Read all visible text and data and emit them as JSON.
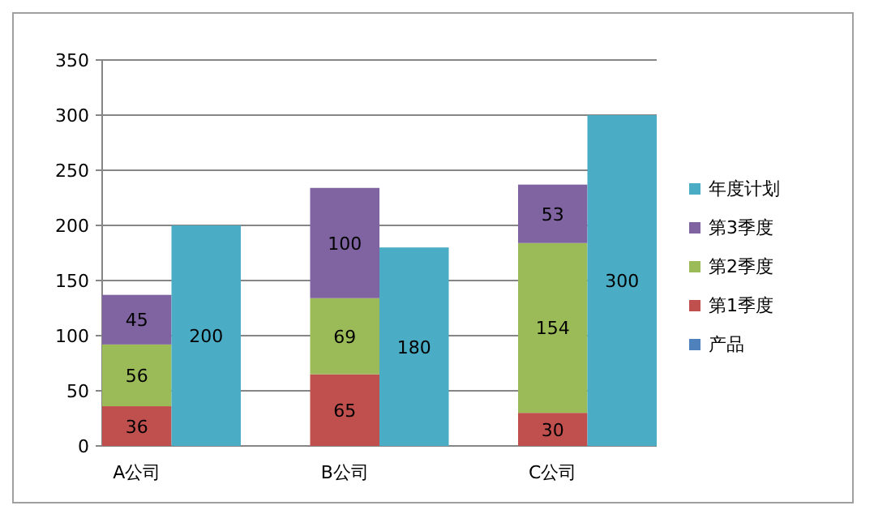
{
  "chart_data": {
    "type": "bar",
    "stacked": true,
    "categories": [
      "A公司",
      null,
      "B公司",
      null,
      "C公司",
      null
    ],
    "series": [
      {
        "name": "产品",
        "color": "#4f81bd",
        "values": [
          null,
          null,
          null,
          null,
          null,
          null
        ]
      },
      {
        "name": "第1季度",
        "color": "#c0504d",
        "values": [
          36,
          null,
          65,
          null,
          30,
          null
        ]
      },
      {
        "name": "第2季度",
        "color": "#9bbb59",
        "values": [
          56,
          null,
          69,
          null,
          154,
          null
        ]
      },
      {
        "name": "第3季度",
        "color": "#8064a2",
        "values": [
          45,
          null,
          100,
          null,
          53,
          null
        ]
      },
      {
        "name": "年度计划",
        "color": "#4bacc6",
        "values": [
          null,
          200,
          null,
          180,
          null,
          300
        ]
      }
    ],
    "ylim": [
      0,
      350
    ],
    "yticks": [
      0,
      50,
      100,
      150,
      200,
      250,
      300,
      350
    ],
    "grid": "y",
    "legend": "right",
    "data_labels": true
  }
}
